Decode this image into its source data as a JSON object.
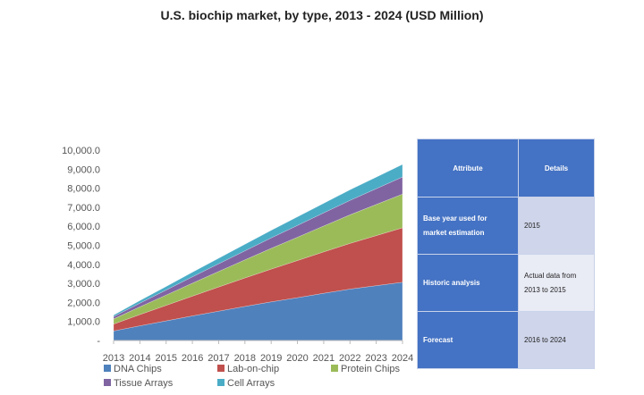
{
  "chart_data": {
    "type": "area",
    "stacked": true,
    "title": "U.S. biochip market, by type, 2013 - 2024 (USD Million)",
    "categories": [
      "2013",
      "2014",
      "2015",
      "2016",
      "2017",
      "2018",
      "2019",
      "2020",
      "2021",
      "2022",
      "2023",
      "2024"
    ],
    "ylim": [
      0,
      10000
    ],
    "yticks": [
      "-",
      "1,000.0",
      "2,000.0",
      "3,000.0",
      "4,000.0",
      "5,000.0",
      "6,000.0",
      "7,000.0",
      "8,000.0",
      "9,000.0",
      "10,000.0"
    ],
    "grid": false,
    "legend_position": "bottom",
    "series": [
      {
        "name": "DNA Chips",
        "color": "#4f81bd",
        "values": [
          500,
          770,
          1030,
          1290,
          1540,
          1790,
          2030,
          2250,
          2480,
          2700,
          2880,
          3060
        ]
      },
      {
        "name": "Lab-on-chip",
        "color": "#c0504d",
        "values": [
          360,
          590,
          815,
          1040,
          1270,
          1495,
          1720,
          1950,
          2175,
          2400,
          2630,
          2860
        ]
      },
      {
        "name": "Protein Chips",
        "color": "#9bbb59",
        "values": [
          270,
          405,
          540,
          680,
          815,
          950,
          1090,
          1225,
          1360,
          1500,
          1635,
          1770
        ]
      },
      {
        "name": "Tissue Arrays",
        "color": "#8064a2",
        "values": [
          125,
          195,
          265,
          335,
          405,
          475,
          550,
          620,
          690,
          760,
          830,
          900
        ]
      },
      {
        "name": "Cell Arrays",
        "color": "#4bacc6",
        "values": [
          80,
          135,
          185,
          240,
          290,
          345,
          395,
          450,
          500,
          555,
          605,
          660
        ]
      }
    ]
  },
  "table": {
    "header": [
      "Attribute",
      "Details"
    ],
    "rows": [
      [
        "Base year used for market estimation",
        "2015"
      ],
      [
        "Historic analysis",
        "Actual data from 2013 to 2015"
      ],
      [
        "Forecast",
        "2016 to 2024"
      ]
    ],
    "colors": {
      "header": "#4472c4",
      "row_light": "#cfd5ea",
      "row_lighter": "#e9ebf5"
    }
  }
}
